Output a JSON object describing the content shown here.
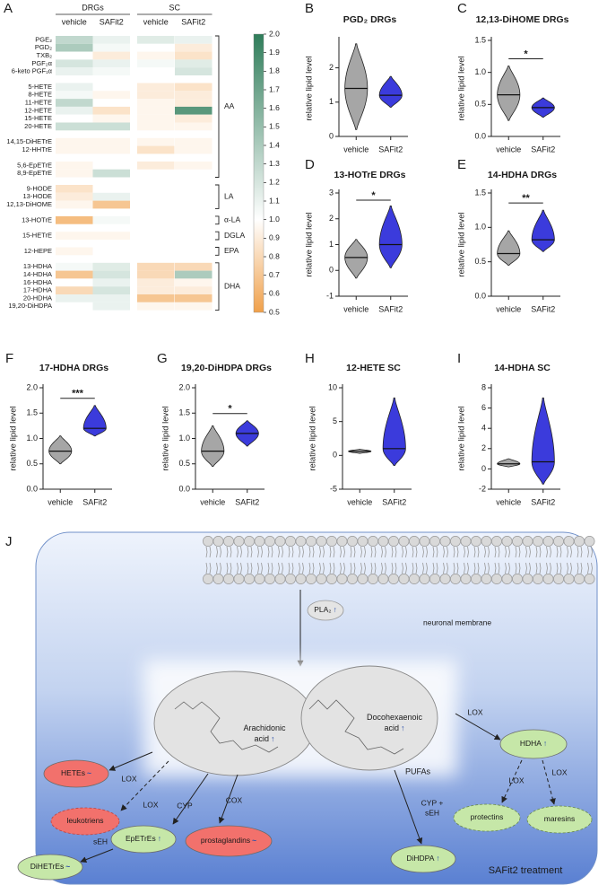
{
  "chart_data": [
    {
      "type": "heatmap",
      "label": "A",
      "groups": [
        "DRGs",
        "SC"
      ],
      "columns": [
        "vehicle",
        "SAFit2",
        "vehicle",
        "SAFit2"
      ],
      "row_groups": [
        {
          "name": "AA",
          "blocks": [
            {
              "rows": [
                "PGE₂",
                "PGD₂",
                "TXB₂",
                "PGF₂α",
                "6-keto PGF₁α"
              ],
              "values": [
                [
                  1.3,
                  1.1,
                  1.15,
                  1.1
                ],
                [
                  1.4,
                  1.05,
                  1.0,
                  0.9
                ],
                [
                  1.0,
                  0.9,
                  0.95,
                  0.85
                ],
                [
                  1.2,
                  1.1,
                  1.05,
                  1.15
                ],
                [
                  1.1,
                  1.05,
                  1.0,
                  1.2
                ]
              ]
            },
            {
              "rows": [
                "5-HETE",
                "8-HETE",
                "11-HETE",
                "12-HETE",
                "15-HETE",
                "20-HETE"
              ],
              "values": [
                [
                  1.1,
                  1.0,
                  0.9,
                  0.85
                ],
                [
                  1.05,
                  0.95,
                  0.9,
                  0.9
                ],
                [
                  1.3,
                  1.0,
                  0.95,
                  0.9
                ],
                [
                  1.1,
                  0.85,
                  0.95,
                  1.8
                ],
                [
                  1.0,
                  0.95,
                  0.95,
                  0.9
                ],
                [
                  1.25,
                  1.25,
                  0.95,
                  0.95
                ]
              ]
            },
            {
              "rows": [
                "14,15-DiHETrE",
                "12-HHTrE"
              ],
              "values": [
                [
                  0.95,
                  0.95,
                  0.95,
                  0.95
                ],
                [
                  0.95,
                  0.95,
                  0.85,
                  0.95
                ]
              ]
            },
            {
              "rows": [
                "5,6-EpETrE",
                "8,9-EpETrE"
              ],
              "values": [
                [
                  0.95,
                  1.0,
                  0.9,
                  0.95
                ],
                [
                  0.95,
                  1.25,
                  null,
                  null
                ]
              ]
            }
          ]
        },
        {
          "name": "LA",
          "blocks": [
            {
              "rows": [
                "9-HODE",
                "13-HODE",
                "12,13-DiHOME"
              ],
              "values": [
                [
                  0.85,
                  1.0,
                  null,
                  null
                ],
                [
                  0.9,
                  1.1,
                  null,
                  null
                ],
                [
                  0.95,
                  0.7,
                  null,
                  null
                ]
              ]
            }
          ]
        },
        {
          "name": "α-LA",
          "blocks": [
            {
              "rows": [
                "13-HOTrE"
              ],
              "values": [
                [
                  0.65,
                  1.05,
                  null,
                  null
                ]
              ]
            }
          ]
        },
        {
          "name": "DGLA",
          "blocks": [
            {
              "rows": [
                "15-HETrE"
              ],
              "values": [
                [
                  0.95,
                  0.95,
                  null,
                  null
                ]
              ]
            }
          ]
        },
        {
          "name": "EPA",
          "blocks": [
            {
              "rows": [
                "12-HEPE"
              ],
              "values": [
                [
                  0.95,
                  1.0,
                  null,
                  null
                ]
              ]
            }
          ]
        },
        {
          "name": "DHA",
          "blocks": [
            {
              "rows": [
                "13-HDHA",
                "14-HDHA",
                "16-HDHA",
                "17-HDHA",
                "20-HDHA",
                "19,20-DiHDPA"
              ],
              "values": [
                [
                  1.05,
                  1.15,
                  0.8,
                  0.8
                ],
                [
                  0.7,
                  1.2,
                  0.8,
                  1.4
                ],
                [
                  1.0,
                  1.1,
                  0.9,
                  0.95
                ],
                [
                  0.8,
                  1.2,
                  0.9,
                  0.9
                ],
                [
                  1.1,
                  1.1,
                  0.7,
                  0.7
                ],
                [
                  1.0,
                  1.1,
                  0.95,
                  0.95
                ]
              ]
            }
          ]
        }
      ],
      "clim": [
        0.5,
        2.0
      ],
      "cticks": [
        {
          "value": 2,
          "label": "2.0"
        },
        1.9,
        1.8,
        1.7,
        1.6,
        1.5,
        1.4,
        1.3,
        1.2,
        1.1,
        {
          "value": 1,
          "label": "1.0"
        },
        0.9,
        0.8,
        0.7,
        0.6,
        0.5
      ],
      "color_stops": [
        {
          "value": 0.5,
          "color": "#f0a04a"
        },
        {
          "value": 1,
          "color": "#ffffff"
        },
        {
          "value": 2,
          "color": "#2f7d5a"
        }
      ]
    },
    {
      "type": "violin",
      "label": "B",
      "title": "PGD₂ DRGs",
      "ylabel": "relative lipid level",
      "categories": [
        "vehicle",
        "SAFit2"
      ],
      "values": [
        1.4,
        1.2
      ],
      "ranges": [
        [
          0.2,
          2.7
        ],
        [
          0.85,
          1.75
        ]
      ],
      "colors": [
        "#a6a6a6",
        "#3b3bdc"
      ],
      "ylim": [
        0,
        2.8
      ],
      "yticks": [
        0,
        1,
        2
      ]
    },
    {
      "type": "violin",
      "label": "C",
      "title": "12,13-DiHOME DRGs",
      "ylabel": "relative lipid level",
      "categories": [
        "vehicle",
        "SAFit2"
      ],
      "values": [
        0.65,
        0.45
      ],
      "ranges": [
        [
          0.25,
          1.1
        ],
        [
          0.3,
          0.6
        ]
      ],
      "colors": [
        "#a6a6a6",
        "#3b3bdc"
      ],
      "ylim": [
        0,
        1.5
      ],
      "yticks": [
        {
          "value": 0,
          "label": "0.0"
        },
        0.5,
        {
          "value": 1,
          "label": "1.0"
        },
        1.5
      ],
      "significance": "*"
    },
    {
      "type": "violin",
      "label": "D",
      "title": "13-HOTrE DRGs",
      "ylabel": "relative lipid level",
      "categories": [
        "vehicle",
        "SAFit2"
      ],
      "values": [
        0.5,
        1.0
      ],
      "ranges": [
        [
          -0.3,
          1.2
        ],
        [
          0.1,
          2.5
        ]
      ],
      "colors": [
        "#a6a6a6",
        "#3b3bdc"
      ],
      "ylim": [
        -1,
        3
      ],
      "yticks": [
        -1,
        0,
        1,
        2,
        3
      ],
      "significance": "*"
    },
    {
      "type": "violin",
      "label": "E",
      "title": "14-HDHA DRGs",
      "ylabel": "relative lipid level",
      "categories": [
        "vehicle",
        "SAFit2"
      ],
      "values": [
        0.62,
        0.82
      ],
      "ranges": [
        [
          0.45,
          0.95
        ],
        [
          0.65,
          1.25
        ]
      ],
      "colors": [
        "#a6a6a6",
        "#3b3bdc"
      ],
      "ylim": [
        0,
        1.5
      ],
      "yticks": [
        {
          "value": 0,
          "label": "0.0"
        },
        0.5,
        {
          "value": 1,
          "label": "1.0"
        },
        1.5
      ],
      "significance": "**"
    },
    {
      "type": "violin",
      "label": "F",
      "title": "17-HDHA DRGs",
      "ylabel": "relative lipid level",
      "categories": [
        "vehicle",
        "SAFit2"
      ],
      "values": [
        0.75,
        1.2
      ],
      "ranges": [
        [
          0.5,
          1.05
        ],
        [
          1.05,
          1.65
        ]
      ],
      "colors": [
        "#a6a6a6",
        "#3b3bdc"
      ],
      "ylim": [
        0,
        2
      ],
      "yticks": [
        {
          "value": 0,
          "label": "0.0"
        },
        0.5,
        {
          "value": 1,
          "label": "1.0"
        },
        1.5,
        {
          "value": 2,
          "label": "2.0"
        }
      ],
      "significance": "***"
    },
    {
      "type": "violin",
      "label": "G",
      "title": "19,20-DiHDPA DRGs",
      "ylabel": "relative lipid level",
      "categories": [
        "vehicle",
        "SAFit2"
      ],
      "values": [
        0.75,
        1.1
      ],
      "ranges": [
        [
          0.45,
          1.25
        ],
        [
          0.85,
          1.35
        ]
      ],
      "colors": [
        "#a6a6a6",
        "#3b3bdc"
      ],
      "ylim": [
        0,
        2
      ],
      "yticks": [
        {
          "value": 0,
          "label": "0.0"
        },
        0.5,
        {
          "value": 1,
          "label": "1.0"
        },
        1.5,
        {
          "value": 2,
          "label": "2.0"
        }
      ],
      "significance": "*"
    },
    {
      "type": "violin",
      "label": "H",
      "title": "12-HETE SC",
      "ylabel": "relative lipid level",
      "categories": [
        "vehicle",
        "SAFit2"
      ],
      "values": [
        0.6,
        1
      ],
      "ranges": [
        [
          0.3,
          0.9
        ],
        [
          -1.5,
          8.5
        ]
      ],
      "colors": [
        "#a6a6a6",
        "#3b3bdc"
      ],
      "ylim": [
        -5,
        10
      ],
      "yticks": [
        -5,
        0,
        5,
        10
      ]
    },
    {
      "type": "violin",
      "label": "I",
      "title": "14-HDHA SC",
      "ylabel": "relative lipid level",
      "categories": [
        "vehicle",
        "SAFit2"
      ],
      "values": [
        0.5,
        0.7
      ],
      "ranges": [
        [
          0.2,
          1
        ],
        [
          -1.5,
          7
        ]
      ],
      "colors": [
        "#a6a6a6",
        "#3b3bdc"
      ],
      "ylim": [
        -2,
        8
      ],
      "yticks": [
        -2,
        0,
        2,
        4,
        6,
        8
      ]
    }
  ],
  "diagram": {
    "label": "J",
    "membrane": "neuronal membrane",
    "enzyme": {
      "label": "PLA₂",
      "change": "↑"
    },
    "precursors": [
      {
        "lines": [
          "Arachidonic",
          "acid"
        ],
        "change": "↑"
      },
      {
        "lines": [
          "Docohexaenoic",
          "acid"
        ],
        "change": "↑"
      }
    ],
    "group": "PUFAs",
    "nodes": [
      {
        "label": "HETEs",
        "change": "~"
      },
      {
        "label": "leukotriens"
      },
      {
        "label": "EpETrEs",
        "change": "↑"
      },
      {
        "label": "prostaglandins",
        "change": "~"
      },
      {
        "label": "DiHETrEs",
        "change": "~"
      },
      {
        "label": "DiHDPA",
        "change": "↑"
      },
      {
        "label": "HDHA",
        "change": "↑"
      },
      {
        "label": "protectins"
      },
      {
        "label": "maresins"
      }
    ],
    "edges": [
      {
        "lines": [
          "LOX"
        ]
      },
      {
        "lines": [
          "LOX"
        ]
      },
      {
        "lines": [
          "CYP"
        ]
      },
      {
        "lines": [
          "COX"
        ]
      },
      {
        "lines": [
          "sEH"
        ]
      },
      {
        "lines": [
          "CYP +",
          "sEH"
        ]
      },
      {
        "lines": [
          "LOX"
        ]
      },
      {
        "lines": [
          "LOX"
        ]
      },
      {
        "lines": [
          "LOX"
        ]
      }
    ],
    "treatment": "SAFit2 treatment"
  }
}
